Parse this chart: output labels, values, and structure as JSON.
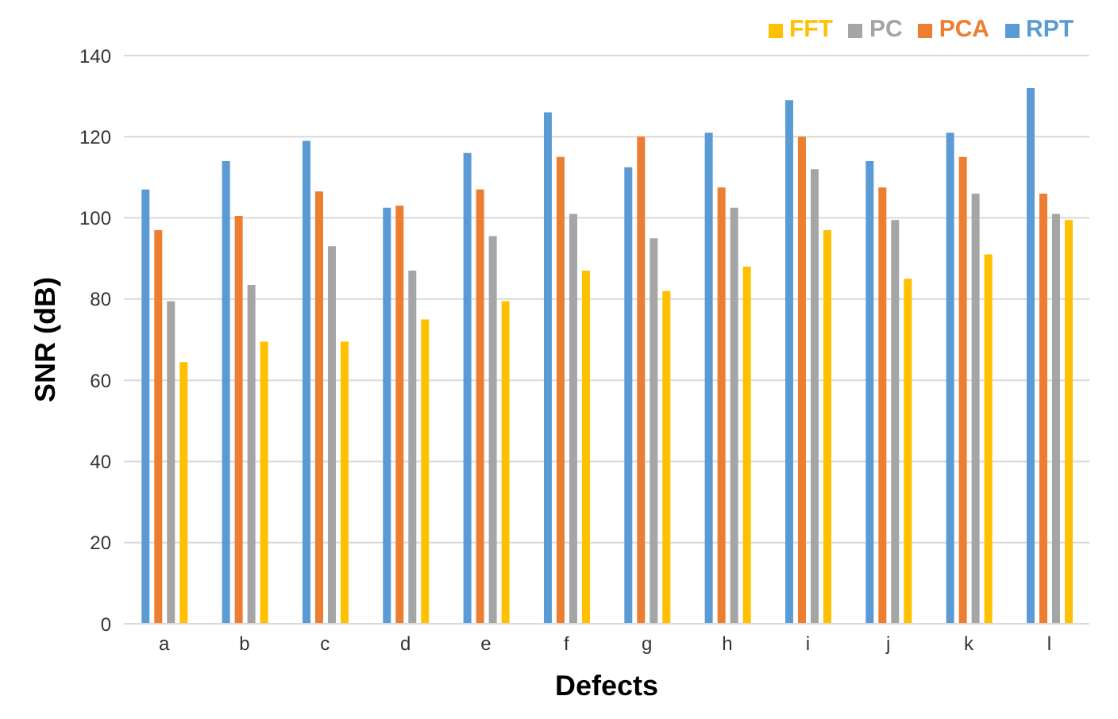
{
  "chart_data": {
    "type": "bar",
    "xlabel": "Defects",
    "ylabel": "SNR (dB)",
    "categories": [
      "a",
      "b",
      "c",
      "d",
      "e",
      "f",
      "g",
      "h",
      "i",
      "j",
      "k",
      "l"
    ],
    "series": [
      {
        "name": "RPT",
        "color": "#5b9bd5",
        "values": [
          107,
          114,
          119,
          102.5,
          116,
          126,
          112.5,
          121,
          129,
          114,
          121,
          132
        ]
      },
      {
        "name": "PCA",
        "color": "#ed7d31",
        "values": [
          97,
          100.5,
          106.5,
          103,
          107,
          115,
          120,
          107.5,
          120,
          107.5,
          115,
          106
        ]
      },
      {
        "name": "PC",
        "color": "#a5a5a5",
        "values": [
          79.5,
          83.5,
          93,
          87,
          95.5,
          101,
          95,
          102.5,
          112,
          99.5,
          106,
          101
        ]
      },
      {
        "name": "FFT",
        "color": "#ffc000",
        "values": [
          64.5,
          69.5,
          69.5,
          75,
          79.5,
          87,
          82,
          88,
          97,
          85,
          91,
          99.5
        ]
      }
    ],
    "ylim": [
      0,
      140
    ],
    "yticks": [
      0,
      20,
      40,
      60,
      80,
      100,
      120,
      140
    ],
    "grid": "y",
    "legend": "top right"
  }
}
